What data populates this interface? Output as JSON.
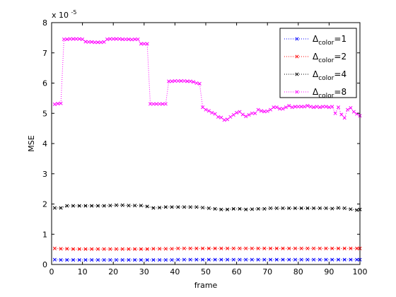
{
  "chart_data": {
    "type": "line",
    "title": "",
    "xlabel": "frame",
    "ylabel": "MSE",
    "scale_multiplier_base": "x 10",
    "scale_multiplier_exp": "-5",
    "xlim": [
      0,
      100
    ],
    "ylim": [
      0,
      8
    ],
    "xticks": [
      "0",
      "10",
      "20",
      "30",
      "40",
      "50",
      "60",
      "70",
      "80",
      "90",
      "100"
    ],
    "yticks": [
      "0",
      "1",
      "2",
      "3",
      "4",
      "5",
      "6",
      "7",
      "8"
    ],
    "grid": false,
    "legend_position": "top-right",
    "series": [
      {
        "name_main": "Δ",
        "name_sub": "color",
        "name_suffix": "=1",
        "color": "#0000ff",
        "marker": "x",
        "line_style": "dotted",
        "x": [
          1,
          3,
          5,
          7,
          9,
          11,
          13,
          15,
          17,
          19,
          21,
          23,
          25,
          27,
          29,
          31,
          33,
          35,
          37,
          39,
          41,
          43,
          45,
          47,
          49,
          51,
          53,
          55,
          57,
          59,
          61,
          63,
          65,
          67,
          69,
          71,
          73,
          75,
          77,
          79,
          81,
          83,
          85,
          87,
          89,
          91,
          93,
          95,
          97,
          99,
          100
        ],
        "y": [
          0.16,
          0.15,
          0.15,
          0.15,
          0.15,
          0.15,
          0.15,
          0.15,
          0.15,
          0.15,
          0.15,
          0.15,
          0.15,
          0.15,
          0.15,
          0.15,
          0.15,
          0.15,
          0.15,
          0.15,
          0.16,
          0.16,
          0.16,
          0.16,
          0.16,
          0.16,
          0.16,
          0.16,
          0.16,
          0.16,
          0.16,
          0.16,
          0.16,
          0.16,
          0.16,
          0.16,
          0.16,
          0.16,
          0.16,
          0.16,
          0.16,
          0.16,
          0.16,
          0.16,
          0.16,
          0.16,
          0.16,
          0.16,
          0.16,
          0.16,
          0.16
        ]
      },
      {
        "name_main": "Δ",
        "name_sub": "color",
        "name_suffix": "=2",
        "color": "#ff0000",
        "marker": "x",
        "line_style": "dotted",
        "x": [
          1,
          3,
          5,
          7,
          9,
          11,
          13,
          15,
          17,
          19,
          21,
          23,
          25,
          27,
          29,
          31,
          33,
          35,
          37,
          39,
          41,
          43,
          45,
          47,
          49,
          51,
          53,
          55,
          57,
          59,
          61,
          63,
          65,
          67,
          69,
          71,
          73,
          75,
          77,
          79,
          81,
          83,
          85,
          87,
          89,
          91,
          93,
          95,
          97,
          99,
          100
        ],
        "y": [
          0.53,
          0.52,
          0.52,
          0.51,
          0.51,
          0.51,
          0.51,
          0.51,
          0.51,
          0.51,
          0.51,
          0.51,
          0.51,
          0.51,
          0.51,
          0.51,
          0.52,
          0.52,
          0.52,
          0.52,
          0.53,
          0.53,
          0.53,
          0.53,
          0.53,
          0.53,
          0.53,
          0.53,
          0.53,
          0.53,
          0.53,
          0.53,
          0.53,
          0.53,
          0.53,
          0.53,
          0.53,
          0.53,
          0.53,
          0.53,
          0.53,
          0.53,
          0.53,
          0.53,
          0.53,
          0.53,
          0.53,
          0.53,
          0.53,
          0.53,
          0.53
        ]
      },
      {
        "name_main": "Δ",
        "name_sub": "color",
        "name_suffix": "=4",
        "color": "#000000",
        "marker": "x",
        "line_style": "dotted",
        "x": [
          1,
          3,
          5,
          7,
          9,
          11,
          13,
          15,
          17,
          19,
          21,
          23,
          25,
          27,
          29,
          31,
          33,
          35,
          37,
          39,
          41,
          43,
          45,
          47,
          49,
          51,
          53,
          55,
          57,
          59,
          61,
          63,
          65,
          67,
          69,
          71,
          73,
          75,
          77,
          79,
          81,
          83,
          85,
          87,
          89,
          91,
          93,
          95,
          97,
          99,
          100
        ],
        "y": [
          1.87,
          1.87,
          1.94,
          1.94,
          1.94,
          1.94,
          1.94,
          1.94,
          1.94,
          1.95,
          1.96,
          1.96,
          1.95,
          1.95,
          1.95,
          1.92,
          1.87,
          1.88,
          1.9,
          1.9,
          1.9,
          1.9,
          1.9,
          1.9,
          1.88,
          1.86,
          1.84,
          1.82,
          1.82,
          1.84,
          1.84,
          1.82,
          1.83,
          1.84,
          1.84,
          1.86,
          1.86,
          1.86,
          1.86,
          1.86,
          1.86,
          1.86,
          1.86,
          1.86,
          1.86,
          1.85,
          1.87,
          1.86,
          1.83,
          1.8,
          1.82
        ]
      },
      {
        "name_main": "Δ",
        "name_sub": "color",
        "name_suffix": "=8",
        "color": "#ff00ff",
        "marker": "x",
        "line_style": "dotted",
        "x": [
          1,
          2,
          3,
          4,
          5,
          6,
          7,
          8,
          9,
          10,
          11,
          12,
          13,
          14,
          15,
          16,
          17,
          18,
          19,
          20,
          21,
          22,
          23,
          24,
          25,
          26,
          27,
          28,
          29,
          30,
          31,
          32,
          33,
          34,
          35,
          36,
          37,
          38,
          39,
          40,
          41,
          42,
          43,
          44,
          45,
          46,
          47,
          48,
          49,
          50,
          51,
          52,
          53,
          54,
          55,
          56,
          57,
          58,
          59,
          60,
          61,
          62,
          63,
          64,
          65,
          66,
          67,
          68,
          69,
          70,
          71,
          72,
          73,
          74,
          75,
          76,
          77,
          78,
          79,
          80,
          81,
          82,
          83,
          84,
          85,
          86,
          87,
          88,
          89,
          90,
          91,
          92,
          93,
          94,
          95,
          96,
          97,
          98,
          99,
          100
        ],
        "y": [
          5.3,
          5.32,
          5.33,
          7.45,
          7.45,
          7.46,
          7.46,
          7.46,
          7.46,
          7.45,
          7.37,
          7.36,
          7.36,
          7.35,
          7.35,
          7.35,
          7.36,
          7.45,
          7.46,
          7.46,
          7.46,
          7.46,
          7.45,
          7.45,
          7.45,
          7.44,
          7.45,
          7.45,
          7.3,
          7.3,
          7.3,
          5.31,
          5.31,
          5.31,
          5.31,
          5.31,
          5.31,
          6.06,
          6.06,
          6.07,
          6.07,
          6.07,
          6.07,
          6.06,
          6.06,
          6.04,
          6.0,
          5.98,
          5.2,
          5.12,
          5.08,
          5.02,
          4.98,
          4.88,
          4.86,
          4.78,
          4.8,
          4.88,
          4.95,
          5.02,
          5.05,
          4.96,
          4.9,
          4.95,
          5.0,
          5.0,
          5.12,
          5.08,
          5.06,
          5.07,
          5.12,
          5.2,
          5.2,
          5.15,
          5.15,
          5.2,
          5.25,
          5.2,
          5.22,
          5.22,
          5.22,
          5.22,
          5.25,
          5.22,
          5.2,
          5.22,
          5.2,
          5.22,
          5.22,
          5.2,
          5.22,
          5.0,
          5.2,
          4.96,
          4.85,
          5.12,
          5.18,
          5.05,
          4.98,
          4.92
        ]
      }
    ]
  }
}
